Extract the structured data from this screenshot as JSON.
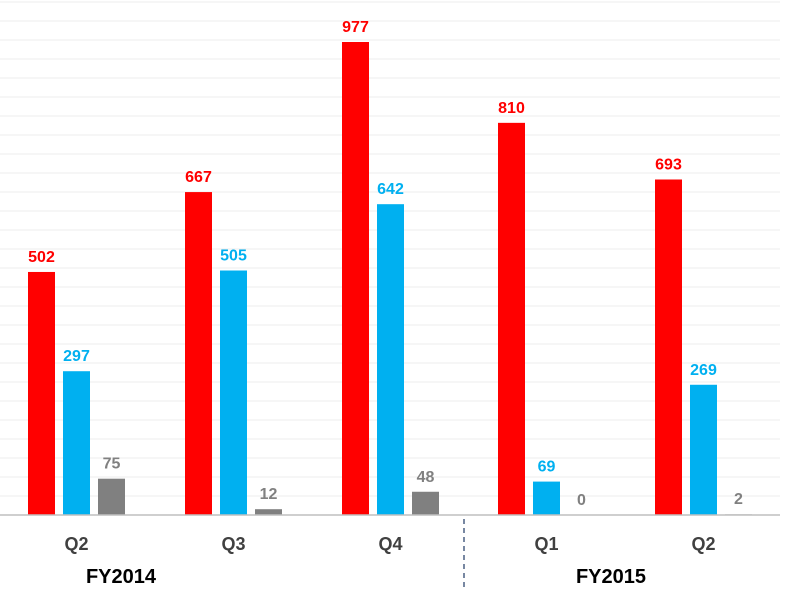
{
  "chart_data": {
    "type": "bar",
    "categories": [
      "Q2",
      "Q3",
      "Q4",
      "Q1",
      "Q2"
    ],
    "groups": [
      {
        "label": "FY2014",
        "categories": [
          "Q2",
          "Q3",
          "Q4"
        ]
      },
      {
        "label": "FY2015",
        "categories": [
          "Q1",
          "Q2"
        ]
      }
    ],
    "series": [
      {
        "color": "#ff0000",
        "values": [
          502,
          667,
          977,
          810,
          693
        ]
      },
      {
        "color": "#00b0f0",
        "values": [
          297,
          505,
          642,
          69,
          269
        ]
      },
      {
        "color": "#808080",
        "values": [
          75,
          12,
          48,
          0,
          2
        ]
      }
    ],
    "ylim": [
      0,
      1000
    ],
    "grid": true,
    "legend": "none",
    "title": "",
    "xlabel": "",
    "ylabel": ""
  }
}
